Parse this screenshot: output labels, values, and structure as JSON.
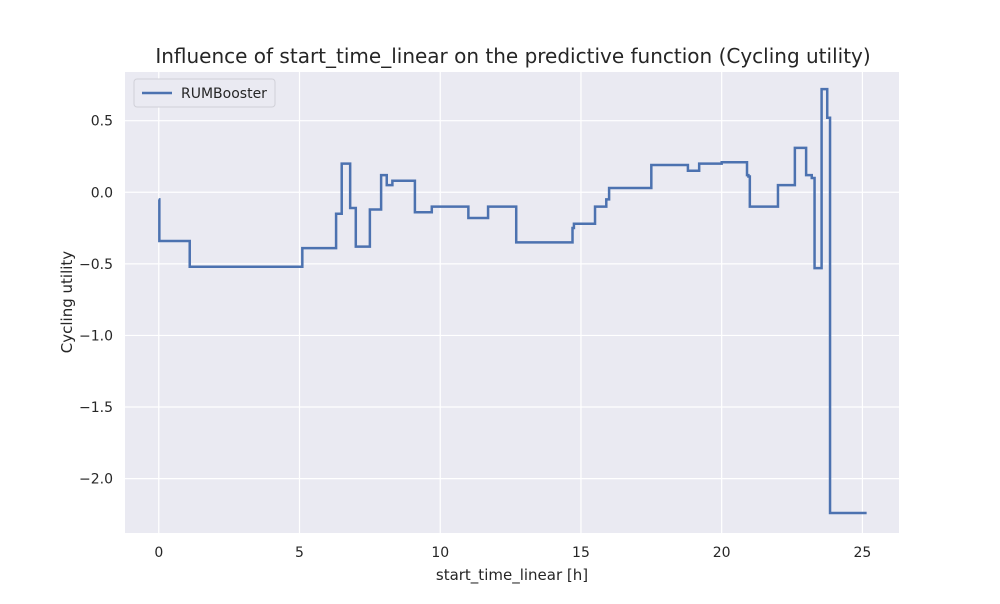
{
  "chart_data": {
    "type": "line",
    "title": "Influence of start_time_linear on the predictive function (Cycling utility)",
    "xlabel": "start_time_linear [h]",
    "ylabel": "Cycling utility",
    "xlim": [
      -1.2,
      26.3
    ],
    "ylim": [
      -2.38,
      0.84
    ],
    "xticks": [
      0,
      5,
      10,
      15,
      20,
      25
    ],
    "xtick_labels": [
      "0",
      "5",
      "10",
      "15",
      "20",
      "25"
    ],
    "yticks": [
      0.5,
      0.0,
      -0.5,
      -1.0,
      -1.5,
      -2.0
    ],
    "ytick_labels": [
      "0.5",
      "0.0",
      "−0.5",
      "−1.0",
      "−1.5",
      "−2.0"
    ],
    "grid": true,
    "legend_position": "top-left",
    "colors": {
      "background": "#eaeaf2",
      "grid": "#ffffff",
      "line": "#4c72b0",
      "text": "#262626"
    },
    "series": [
      {
        "name": "RUMBooster",
        "step": true,
        "x": [
          0,
          0.02,
          1.1,
          5.1,
          6.3,
          6.5,
          6.8,
          7.0,
          7.5,
          7.9,
          8.1,
          8.3,
          9.1,
          9.7,
          11.0,
          11.7,
          12.7,
          14.7,
          14.75,
          15.5,
          15.9,
          16.0,
          17.5,
          18.8,
          19.2,
          20.0,
          20.9,
          20.95,
          21.0,
          22.0,
          22.6,
          23.0,
          23.2,
          23.3,
          23.55,
          23.75,
          23.85,
          25.15
        ],
        "y": [
          -0.05,
          -0.34,
          -0.52,
          -0.39,
          -0.15,
          0.2,
          -0.11,
          -0.38,
          -0.12,
          0.12,
          0.05,
          0.08,
          -0.14,
          -0.1,
          -0.18,
          -0.1,
          -0.35,
          -0.25,
          -0.22,
          -0.1,
          -0.05,
          0.03,
          0.19,
          0.15,
          0.2,
          0.21,
          0.12,
          0.11,
          -0.1,
          0.05,
          0.31,
          0.12,
          0.1,
          -0.53,
          0.72,
          0.52,
          -2.24,
          -2.24
        ]
      }
    ]
  }
}
